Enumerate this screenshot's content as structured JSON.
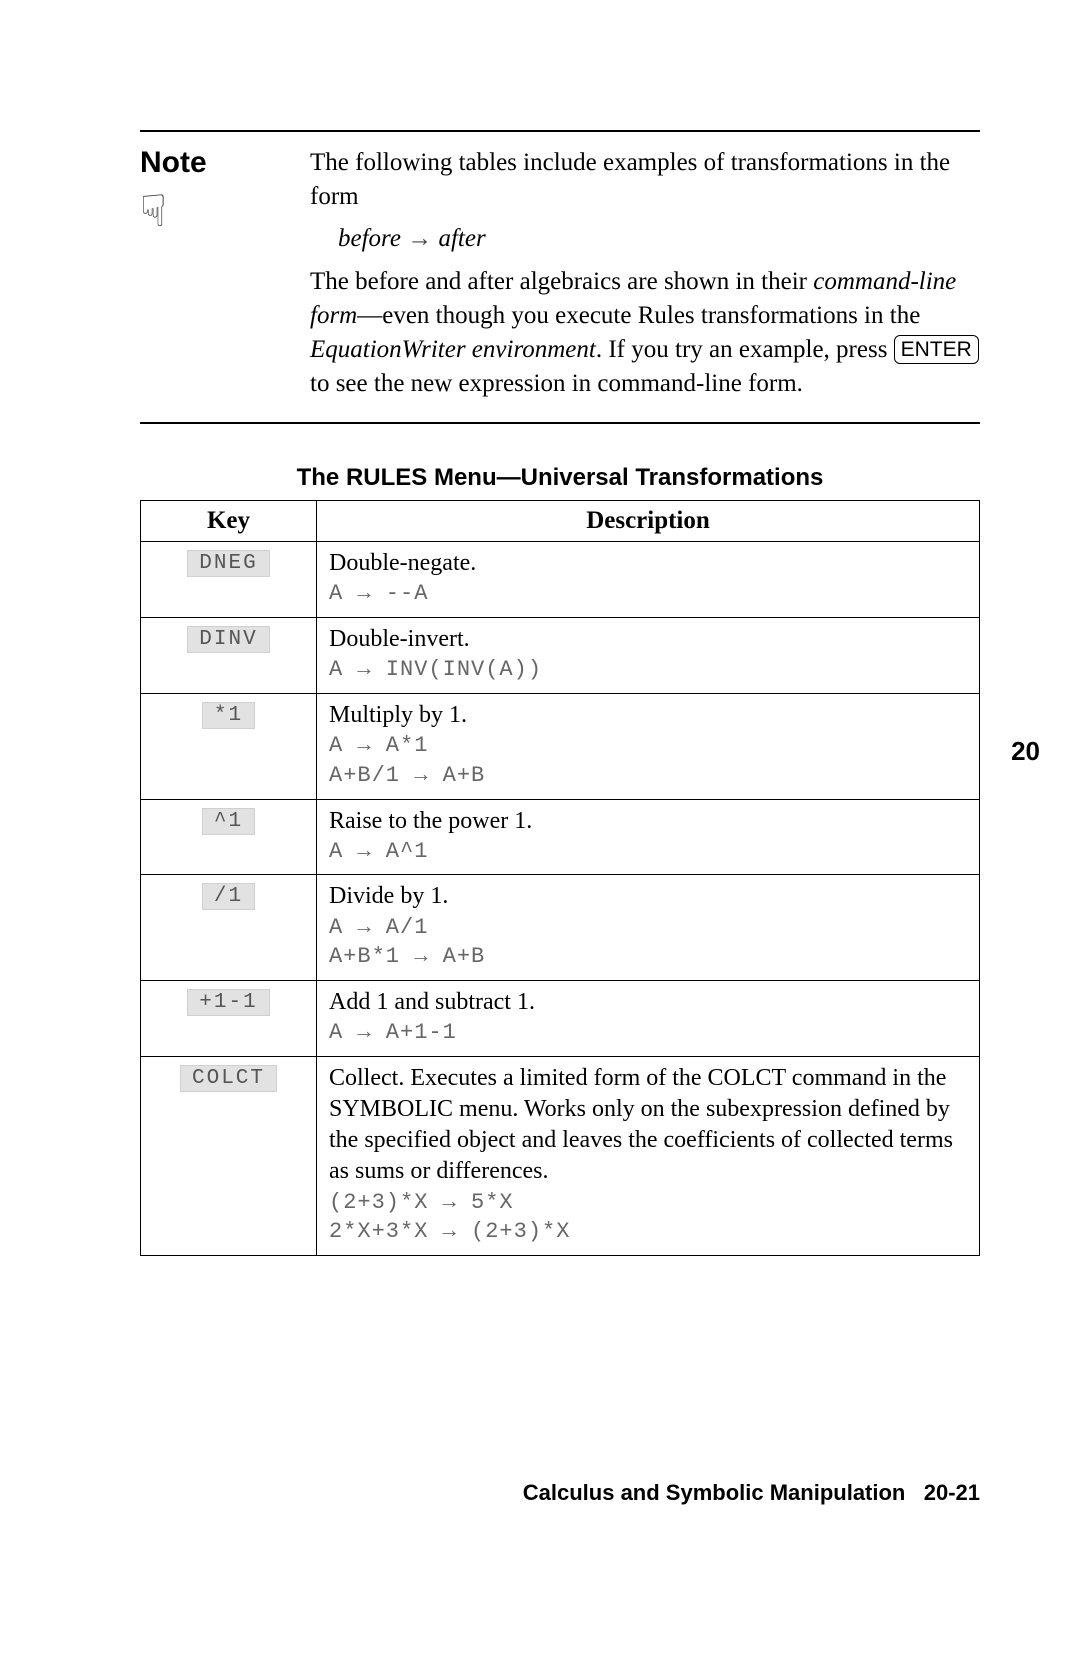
{
  "note": {
    "label": "Note",
    "icon_glyph": "☟",
    "para1": "The following tables include examples of transformations in the form",
    "eq_before": "before",
    "eq_arrow": "→",
    "eq_after": "after",
    "para2_pre": "The before and after algebraics are shown in their ",
    "para2_italic1": "command-line form",
    "para2_mid": "—even though you execute Rules transformations in the ",
    "para2_italic2": "EquationWriter environment",
    "para2_post1": ". If you try an example, press ",
    "keycap": "ENTER",
    "para2_post2": " to see the new expression in command-line form."
  },
  "table": {
    "title": "The RULES Menu—Universal Transformations",
    "head_key": "Key",
    "head_desc": "Description",
    "rows": [
      {
        "key": "DNEG",
        "desc": "Double-negate.",
        "lines": [
          "A → --A"
        ]
      },
      {
        "key": "DINV",
        "desc": "Double-invert.",
        "lines": [
          "A → INV(INV(A))"
        ]
      },
      {
        "key": "*1",
        "desc": "Multiply by 1.",
        "lines": [
          "A → A*1",
          "A+B/1 → A+B"
        ]
      },
      {
        "key": "^1",
        "desc": "Raise to the power 1.",
        "lines": [
          "A → A^1"
        ]
      },
      {
        "key": "/1",
        "desc": "Divide by 1.",
        "lines": [
          "A → A/1",
          "A+B*1 → A+B"
        ]
      },
      {
        "key": "+1-1",
        "desc": "Add 1 and subtract 1.",
        "lines": [
          "A → A+1-1"
        ]
      },
      {
        "key": "COLCT",
        "desc": "Collect. Executes a limited form of the COLCT command in the SYMBOLIC menu. Works only on the subexpression defined by the specified object and leaves the coefficients of collected terms as sums or differences.",
        "lines": [
          "(2+3)*X → 5*X",
          "2*X+3*X → (2+3)*X"
        ]
      }
    ]
  },
  "side_tab": "20",
  "footer": {
    "text": "Calculus and Symbolic Manipulation",
    "page": "20-21"
  }
}
